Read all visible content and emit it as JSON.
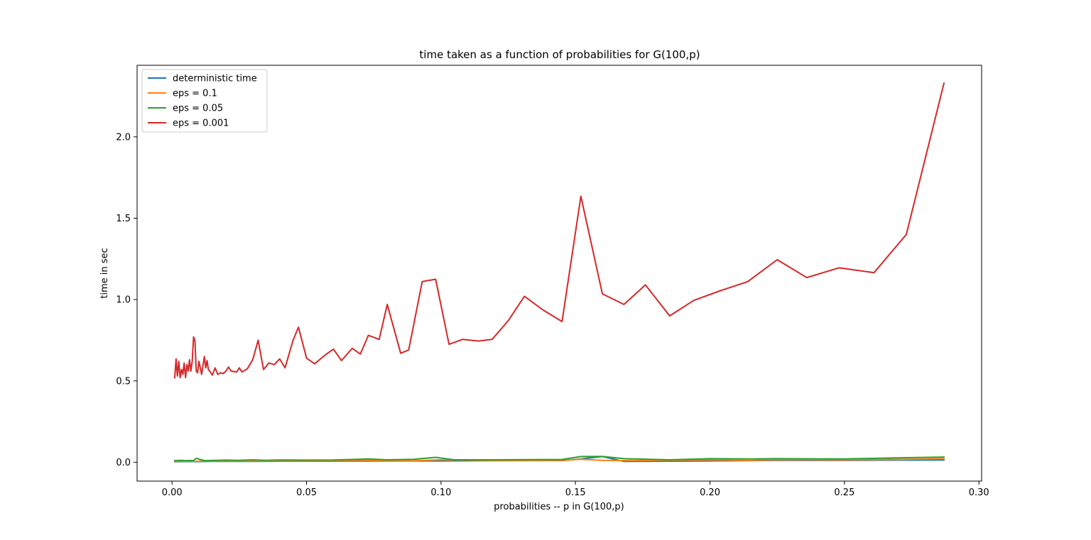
{
  "chart_data": {
    "type": "line",
    "title": "time taken as a function of probabilities for G(100,p)",
    "xlabel": "probabilities -- p in G(100,p)",
    "ylabel": "time in sec",
    "xlim": [
      -0.013,
      0.301
    ],
    "ylim": [
      -0.116,
      2.44
    ],
    "xticks": [
      0.0,
      0.05,
      0.1,
      0.15,
      0.2,
      0.25,
      0.3
    ],
    "xtick_labels": [
      "0.00",
      "0.05",
      "0.10",
      "0.15",
      "0.20",
      "0.25",
      "0.30"
    ],
    "yticks": [
      0.0,
      0.5,
      1.0,
      1.5,
      2.0
    ],
    "ytick_labels": [
      "0.0",
      "0.5",
      "1.0",
      "1.5",
      "2.0"
    ],
    "grid": false,
    "legend_position": "top-left",
    "series": [
      {
        "name": "deterministic time",
        "color": "#1f77b4",
        "x": [
          0.001,
          0.005,
          0.01,
          0.015,
          0.02,
          0.03,
          0.04,
          0.05,
          0.07,
          0.09,
          0.1,
          0.12,
          0.145,
          0.152,
          0.16,
          0.168,
          0.185,
          0.2,
          0.225,
          0.25,
          0.273,
          0.287
        ],
        "y": [
          0.003,
          0.004,
          0.004,
          0.005,
          0.005,
          0.005,
          0.006,
          0.006,
          0.007,
          0.008,
          0.008,
          0.009,
          0.01,
          0.02,
          0.035,
          0.005,
          0.006,
          0.008,
          0.012,
          0.012,
          0.013,
          0.014
        ]
      },
      {
        "name": "eps = 0.1",
        "color": "#ff7f0e",
        "x": [
          0.001,
          0.005,
          0.01,
          0.015,
          0.02,
          0.03,
          0.04,
          0.05,
          0.073,
          0.08,
          0.09,
          0.1,
          0.12,
          0.145,
          0.152,
          0.16,
          0.168,
          0.185,
          0.2,
          0.215,
          0.225,
          0.25,
          0.273,
          0.287
        ],
        "y": [
          0.005,
          0.006,
          0.006,
          0.007,
          0.007,
          0.007,
          0.008,
          0.008,
          0.012,
          0.009,
          0.009,
          0.015,
          0.01,
          0.012,
          0.018,
          0.012,
          0.01,
          0.011,
          0.014,
          0.011,
          0.016,
          0.015,
          0.018,
          0.022
        ]
      },
      {
        "name": "eps = 0.05",
        "color": "#2ca02c",
        "x": [
          0.001,
          0.003,
          0.005,
          0.008,
          0.009,
          0.012,
          0.016,
          0.02,
          0.025,
          0.03,
          0.035,
          0.04,
          0.05,
          0.06,
          0.073,
          0.08,
          0.09,
          0.098,
          0.105,
          0.12,
          0.145,
          0.152,
          0.16,
          0.168,
          0.185,
          0.2,
          0.215,
          0.225,
          0.25,
          0.273,
          0.287
        ],
        "y": [
          0.01,
          0.012,
          0.01,
          0.011,
          0.024,
          0.01,
          0.012,
          0.013,
          0.012,
          0.015,
          0.012,
          0.014,
          0.013,
          0.014,
          0.02,
          0.015,
          0.018,
          0.03,
          0.015,
          0.015,
          0.017,
          0.035,
          0.036,
          0.022,
          0.015,
          0.022,
          0.02,
          0.022,
          0.02,
          0.028,
          0.032
        ]
      },
      {
        "name": "eps = 0.001",
        "color": "#d62728",
        "x": [
          0.001,
          0.0015,
          0.002,
          0.0025,
          0.003,
          0.0035,
          0.004,
          0.0045,
          0.005,
          0.0055,
          0.006,
          0.0065,
          0.007,
          0.0075,
          0.008,
          0.0085,
          0.009,
          0.0095,
          0.01,
          0.011,
          0.012,
          0.0125,
          0.013,
          0.0135,
          0.014,
          0.015,
          0.016,
          0.017,
          0.018,
          0.019,
          0.02,
          0.021,
          0.022,
          0.024,
          0.025,
          0.026,
          0.028,
          0.03,
          0.032,
          0.034,
          0.036,
          0.038,
          0.04,
          0.042,
          0.045,
          0.047,
          0.05,
          0.053,
          0.057,
          0.06,
          0.063,
          0.067,
          0.07,
          0.073,
          0.077,
          0.08,
          0.085,
          0.088,
          0.093,
          0.098,
          0.103,
          0.108,
          0.114,
          0.119,
          0.125,
          0.131,
          0.138,
          0.145,
          0.152,
          0.16,
          0.168,
          0.176,
          0.185,
          0.194,
          0.204,
          0.214,
          0.225,
          0.236,
          0.248,
          0.261,
          0.273,
          0.287
        ],
        "y": [
          0.52,
          0.635,
          0.53,
          0.62,
          0.52,
          0.57,
          0.54,
          0.61,
          0.52,
          0.6,
          0.56,
          0.63,
          0.56,
          0.62,
          0.77,
          0.75,
          0.56,
          0.55,
          0.62,
          0.54,
          0.65,
          0.58,
          0.625,
          0.57,
          0.56,
          0.535,
          0.58,
          0.54,
          0.55,
          0.545,
          0.56,
          0.585,
          0.56,
          0.555,
          0.58,
          0.555,
          0.575,
          0.63,
          0.75,
          0.57,
          0.61,
          0.6,
          0.635,
          0.58,
          0.75,
          0.83,
          0.64,
          0.605,
          0.66,
          0.695,
          0.625,
          0.7,
          0.665,
          0.78,
          0.755,
          0.97,
          0.67,
          0.69,
          1.11,
          1.125,
          0.725,
          0.755,
          0.745,
          0.755,
          0.87,
          1.02,
          0.935,
          0.865,
          1.635,
          1.035,
          0.97,
          1.09,
          0.9,
          0.995,
          1.055,
          1.11,
          1.245,
          1.135,
          1.195,
          1.165,
          1.4,
          2.33
        ]
      }
    ]
  }
}
